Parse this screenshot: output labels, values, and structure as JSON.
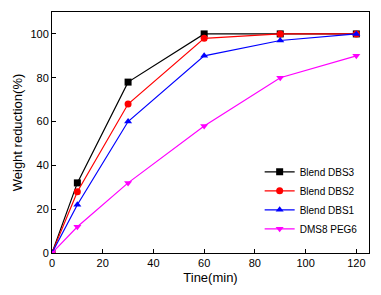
{
  "chart_data": {
    "type": "line",
    "x_label": "Tine(min)",
    "y_label": "Weight reduction(%)",
    "x": [
      0,
      10,
      30,
      60,
      90,
      120
    ],
    "series": [
      {
        "name": "Blend DBS3",
        "color": "#000000",
        "marker": "square",
        "values": [
          0,
          32,
          78,
          100,
          100,
          100
        ]
      },
      {
        "name": "Blend DBS2",
        "color": "#ff0000",
        "marker": "circle",
        "values": [
          0,
          28,
          68,
          98,
          100,
          100
        ]
      },
      {
        "name": "Blend DBS1",
        "color": "#0000ff",
        "marker": "triangle-up",
        "values": [
          0,
          22,
          60,
          90,
          97,
          100
        ]
      },
      {
        "name": "DMS8 PEG6",
        "color": "#ff00ff",
        "marker": "triangle-down",
        "values": [
          0,
          12,
          32,
          58,
          80,
          90
        ]
      }
    ],
    "xlim": [
      0,
      125
    ],
    "xticks": [
      0,
      20,
      40,
      60,
      80,
      100,
      120
    ],
    "ylim": [
      0,
      110
    ],
    "yticks": [
      0,
      20,
      40,
      60,
      80,
      100
    ],
    "grid": false,
    "legend": "lower right"
  }
}
